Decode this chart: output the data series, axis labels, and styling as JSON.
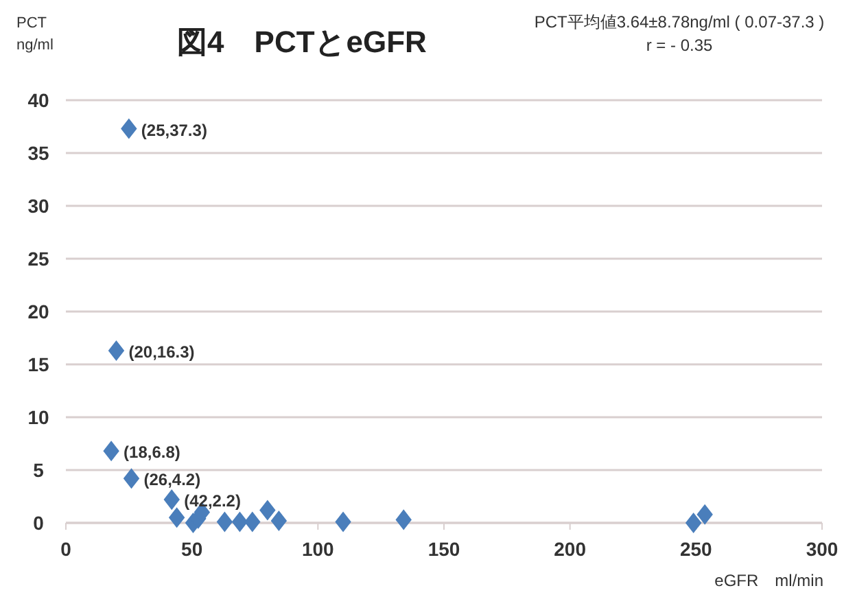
{
  "chart_data": {
    "type": "scatter",
    "title": "図4　PCTとeGFR",
    "xlabel": "eGFR　ml/min",
    "ylabel": "PCT\nng/ml",
    "annotations": [
      "PCT平均値3.64±8.78ng/ml ( 0.07-37.3 )\nr = - 0.35",
      {
        "text": "(25,37.3)",
        "x": 25,
        "y": 37.3
      },
      {
        "text": "(20,16.3)",
        "x": 20,
        "y": 16.3
      },
      {
        "text": "(18,6.8)",
        "x": 18,
        "y": 6.8
      },
      {
        "text": "(26,4.2)",
        "x": 26,
        "y": 4.2
      },
      {
        "text": "(42,2.2)",
        "x": 42,
        "y": 2.2
      }
    ],
    "series": [
      {
        "color": "#4a7ebb",
        "x": [
          25,
          20,
          18,
          26,
          42,
          44,
          50.5,
          52.5,
          54,
          63,
          69,
          74,
          80,
          84.5,
          110,
          134,
          249,
          253.5
        ],
        "values": [
          37.3,
          16.3,
          6.8,
          4.2,
          2.2,
          0.5,
          0,
          0.4,
          1,
          0.1,
          0.1,
          0.1,
          1.2,
          0.2,
          0.1,
          0.3,
          0,
          0.8
        ]
      }
    ],
    "xlim": [
      0,
      300
    ],
    "xticks": [
      0,
      50,
      100,
      150,
      200,
      250,
      300
    ],
    "ylim": [
      0,
      40
    ],
    "yticks": [
      0,
      5,
      10,
      15,
      20,
      25,
      30,
      35,
      40
    ],
    "grid": "y",
    "marker": "diamond"
  }
}
